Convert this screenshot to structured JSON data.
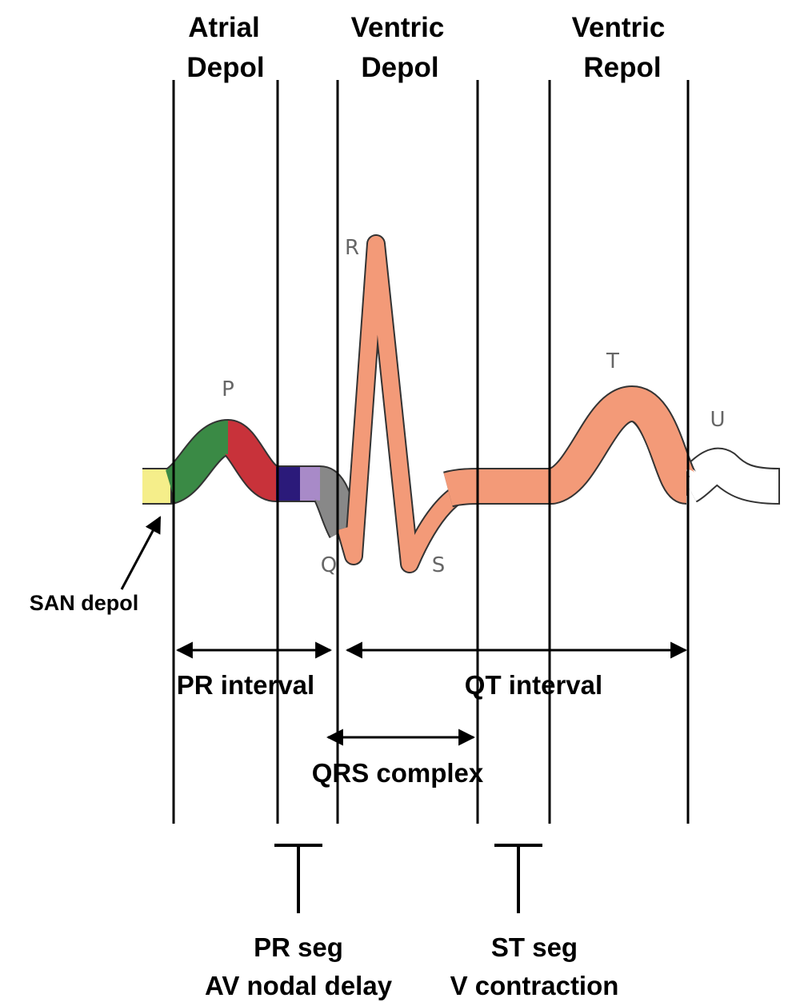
{
  "phases": [
    {
      "line1": "Atrial",
      "line2": "Depol"
    },
    {
      "line1": "Ventric",
      "line2": "Depol"
    },
    {
      "line1": "Ventric",
      "line2": "Repol"
    }
  ],
  "waves": [
    "P",
    "R",
    "T",
    "U",
    "Q",
    "S"
  ],
  "san_label": "SAN depol",
  "intervals": [
    "PR interval",
    "QT interval",
    "QRS complex"
  ],
  "segments": [
    {
      "name": "PR seg",
      "meaning": "AV nodal delay"
    },
    {
      "name": "ST seg",
      "meaning": "V contraction"
    }
  ]
}
